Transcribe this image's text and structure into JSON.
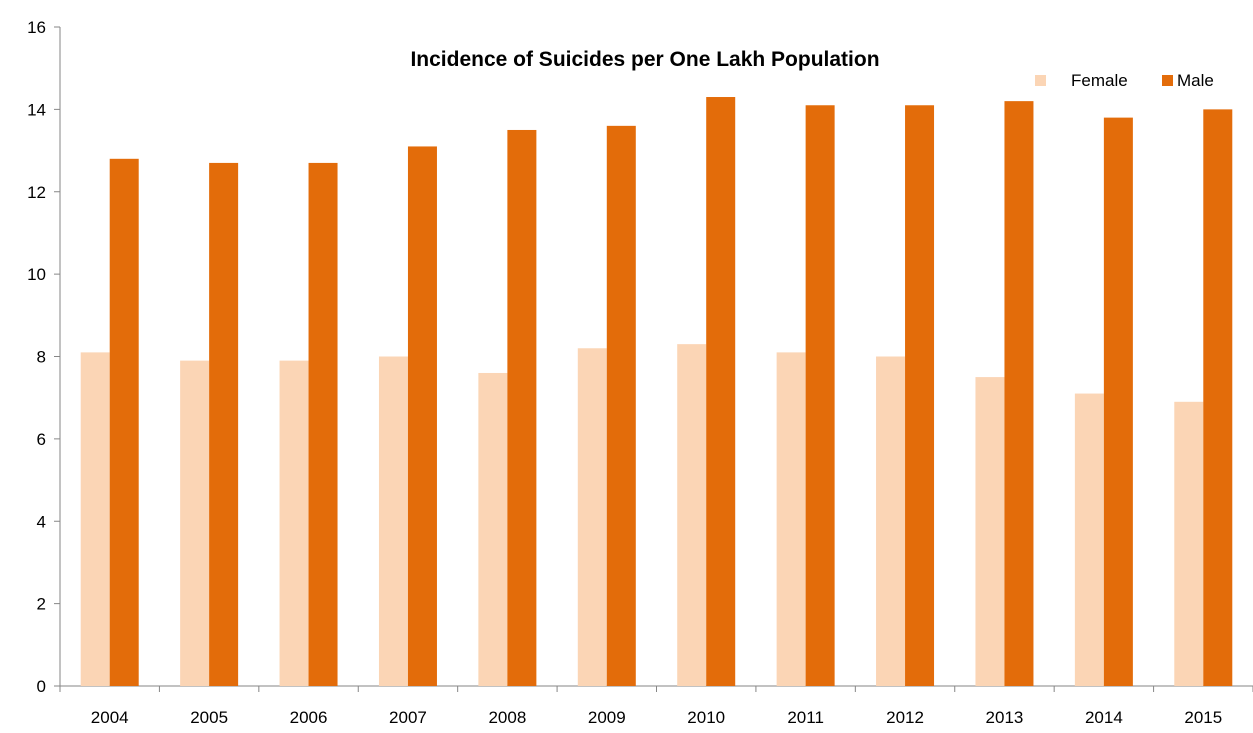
{
  "chart_data": {
    "type": "bar",
    "title": "Incidence  of Suicides per One Lakh Population",
    "xlabel": "",
    "ylabel": "",
    "categories": [
      "2004",
      "2005",
      "2006",
      "2007",
      "2008",
      "2009",
      "2010",
      "2011",
      "2012",
      "2013",
      "2014",
      "2015"
    ],
    "series": [
      {
        "name": "Female",
        "color": "#fbd5b5",
        "values": [
          8.1,
          7.9,
          7.9,
          8.0,
          7.6,
          8.2,
          8.3,
          8.1,
          8.0,
          7.5,
          7.1,
          6.9
        ]
      },
      {
        "name": "Male",
        "color": "#e36c0a",
        "values": [
          12.8,
          12.7,
          12.7,
          13.1,
          13.5,
          13.6,
          14.3,
          14.1,
          14.1,
          14.2,
          13.8,
          14.0
        ]
      }
    ],
    "ylim": [
      0,
      16
    ],
    "yticks": [
      "0",
      "2",
      "4",
      "6",
      "8",
      "10",
      "12",
      "14",
      "16"
    ],
    "grid": false,
    "legend_position": "top-right"
  }
}
